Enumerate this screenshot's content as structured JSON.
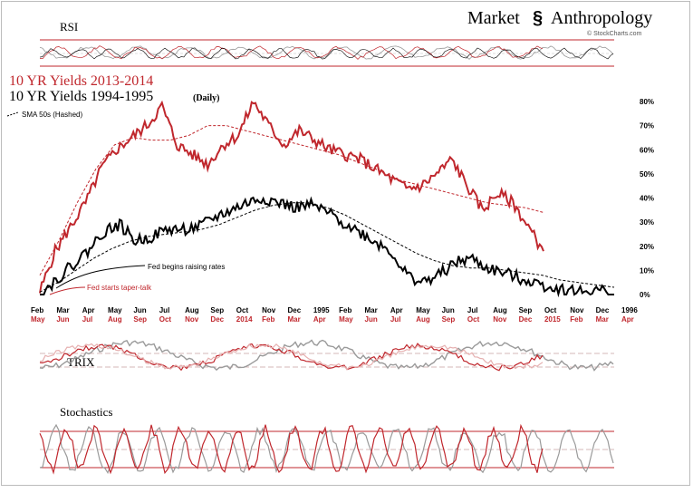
{
  "branding": {
    "name_left": "Market",
    "name_right": "Anthropology",
    "source": "© StockCharts.com"
  },
  "panels": {
    "rsi_label": "RSI",
    "trix_label": "TRIX",
    "stochastics_label": "Stochastics"
  },
  "colors": {
    "red": "#c0272d",
    "black": "#000000",
    "gray": "#9a9a9a",
    "pink": "#e6b0b0"
  },
  "chart_data": {
    "type": "line",
    "legend": {
      "title_red": "10 YR Yields 2013-2014",
      "title_black": "10 YR Yields 1994-1995",
      "title_black_suffix": "(Daily)",
      "sma_label": "SMA 50s (Hashed)"
    },
    "y_axis": {
      "ticks": [
        "0%",
        "10%",
        "20%",
        "30%",
        "40%",
        "50%",
        "60%",
        "70%",
        "80%"
      ],
      "range": [
        0,
        80
      ]
    },
    "x_axis_black": [
      "Feb",
      "Mar",
      "Apr",
      "May",
      "Jun",
      "Jul",
      "Aug",
      "Sep",
      "Oct",
      "Nov",
      "Dec",
      "1995",
      "Feb",
      "Mar",
      "Apr",
      "May",
      "Jun",
      "Jul",
      "Aug",
      "Sep",
      "Oct",
      "Nov",
      "Dec",
      "1996"
    ],
    "x_axis_red": [
      "May",
      "Jun",
      "Jul",
      "Aug",
      "Sep",
      "Oct",
      "Nov",
      "Dec",
      "2014",
      "Feb",
      "Mar",
      "Apr",
      "May",
      "Jun",
      "Jul",
      "Aug",
      "Sep",
      "Oct",
      "Nov",
      "Dec",
      "2015",
      "Feb",
      "Mar",
      "Apr"
    ],
    "annotations": [
      {
        "text": "Fed begins raising rates",
        "color": "black"
      },
      {
        "text": "Fed starts taper-talk",
        "color": "red"
      }
    ],
    "series": [
      {
        "name": "10 YR Yields 2013-2014",
        "color": "#c0272d",
        "values": [
          1,
          18,
          28,
          38,
          52,
          60,
          65,
          70,
          78,
          62,
          58,
          54,
          62,
          66,
          80,
          70,
          62,
          68,
          64,
          60,
          58,
          56,
          52,
          48,
          44,
          45,
          50,
          56,
          45,
          35,
          42,
          38,
          28,
          18
        ]
      },
      {
        "name": "10 YR Yields 1994-1995",
        "color": "#000000",
        "values": [
          0,
          6,
          12,
          18,
          26,
          29,
          22,
          24,
          27,
          27,
          28,
          32,
          35,
          38,
          40,
          38,
          36,
          37,
          34,
          30,
          26,
          22,
          18,
          8,
          5,
          8,
          13,
          15,
          11,
          9,
          7,
          5,
          3,
          2,
          1,
          2,
          0
        ]
      },
      {
        "name": "SMA 50s red",
        "color": "#c0272d",
        "dashed": true,
        "values": [
          8,
          22,
          38,
          52,
          62,
          65,
          64,
          64,
          66,
          70,
          70,
          68,
          66,
          64,
          62,
          60,
          58,
          55,
          52,
          48,
          46,
          44,
          42,
          40,
          38,
          37,
          36,
          34
        ]
      },
      {
        "name": "SMA 50s black",
        "color": "#000000",
        "dashed": true,
        "values": [
          1,
          5,
          10,
          15,
          19,
          22,
          24,
          25,
          26,
          27,
          29,
          32,
          35,
          37,
          38,
          38,
          36,
          33,
          29,
          25,
          21,
          17,
          14,
          12,
          11,
          11,
          10,
          9,
          8,
          6,
          5,
          4,
          3
        ]
      }
    ]
  }
}
